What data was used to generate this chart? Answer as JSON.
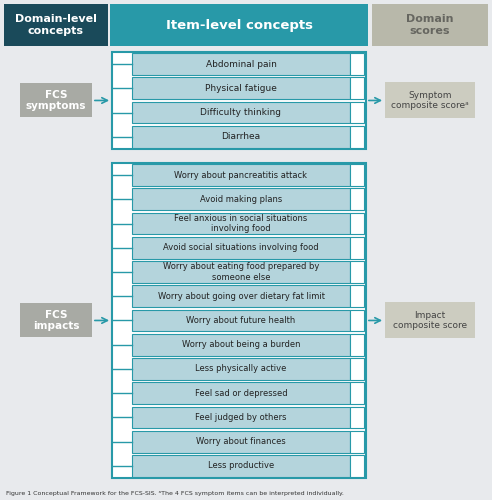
{
  "fig_width": 4.92,
  "fig_height": 5.0,
  "dpi": 100,
  "bg_outer": "#e8eaed",
  "bg_left_col": "#1a4a5a",
  "bg_center_col": "#2899a8",
  "bg_right_col": "#b8b8aa",
  "header_text_color": "#ffffff",
  "right_header_text_color": "#666660",
  "domain_box_bg": "#a8aaa4",
  "domain_box_text": "#ffffff",
  "score_box_bg": "#ccccc0",
  "score_box_text": "#444444",
  "item_bg": "#b4d4dc",
  "item_border": "#2899a8",
  "outer_box_bg": "#ffffff",
  "item_text_color": "#222222",
  "bracket_color": "#2899a8",
  "arrow_color": "#2899a8",
  "headers": [
    "Domain-level\nconcepts",
    "Item-level concepts",
    "Domain\nscores"
  ],
  "symptom_items": [
    "Abdominal pain",
    "Physical fatigue",
    "Difficulty thinking",
    "Diarrhea"
  ],
  "impact_items": [
    "Worry about pancreatitis attack",
    "Avoid making plans",
    "Feel anxious in social situations\ninvolving food",
    "Avoid social situations involving food",
    "Worry about eating food prepared by\nsomeone else",
    "Worry about going over dietary fat limit",
    "Worry about future health",
    "Worry about being a burden",
    "Less physically active",
    "Feel sad or depressed",
    "Feel judged by others",
    "Worry about finances",
    "Less productive"
  ],
  "domain_labels": [
    "FCS\nsymptoms",
    "FCS\nimpacts"
  ],
  "score_labels": [
    "Symptom\ncomposite scoreᵃ",
    "Impact\ncomposite score"
  ],
  "caption": "Figure 1 Conceptual Framework for the FCS-SIS. ᵃThe 4 FCS symptom items can be interpreted individually."
}
